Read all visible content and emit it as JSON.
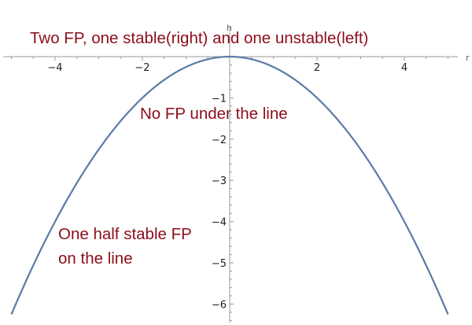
{
  "chart_data": {
    "type": "line",
    "function": "-(x^2)/4",
    "x_range": [
      -5,
      5
    ],
    "xlabel": "r",
    "ylabel": "h",
    "xlim": [
      -5.2,
      5.2
    ],
    "ylim": [
      -6.6,
      0.1
    ],
    "xticks": [
      -4,
      -2,
      2,
      4
    ],
    "yticks": [
      -1,
      -2,
      -3,
      -4,
      -5,
      -6
    ],
    "x_tick_labels": [
      "−4",
      "−2",
      "2",
      "4"
    ],
    "y_tick_labels": [
      "−1",
      "−2",
      "−3",
      "−4",
      "−5",
      "−6"
    ],
    "series": [
      {
        "color": "#5a7ba6",
        "x": [
          -5,
          -4,
          -3,
          -2,
          -1,
          0,
          1,
          2,
          3,
          4,
          5
        ],
        "y": [
          -6.25,
          -4,
          -2.25,
          -1,
          -0.25,
          0,
          -0.25,
          -1,
          -2.25,
          -4,
          -6.25
        ]
      }
    ],
    "annotations": {
      "top": "Two FP, one stable(right) and one unstable(left)",
      "middle": "No FP under the line",
      "bottom_line1": "One half stable FP",
      "bottom_line2": "on the line"
    },
    "annotation_color": "#8b0d1a",
    "grid": false
  }
}
